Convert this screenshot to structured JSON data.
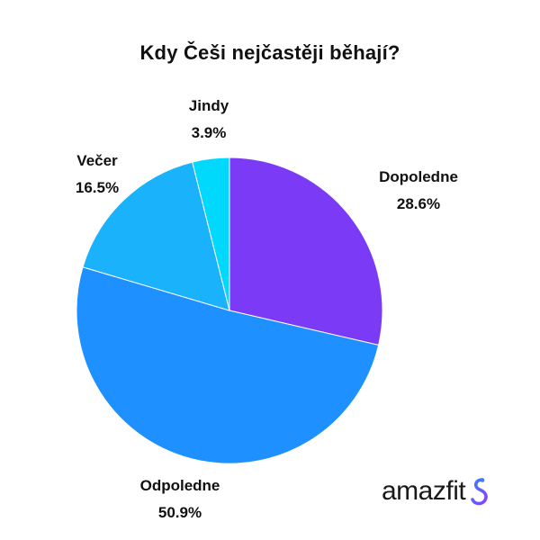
{
  "chart_data": {
    "type": "pie",
    "title": "Kdy Češi nejčastěji běhají?",
    "slices": [
      {
        "label": "Dopoledne",
        "value": 28.6,
        "value_label": "28.6%",
        "color": "#7B3AF5"
      },
      {
        "label": "Odpoledne",
        "value": 50.9,
        "value_label": "50.9%",
        "color": "#1E90FF"
      },
      {
        "label": "Večer",
        "value": 16.5,
        "value_label": "16.5%",
        "color": "#1AB2FA"
      },
      {
        "label": "Jindy",
        "value": 3.9,
        "value_label": "3.9%",
        "color": "#00D9FB"
      }
    ],
    "start_direction": "12 o'clock",
    "direction": "clockwise"
  },
  "brand": {
    "name": "amazfit",
    "icon": "amazfit-logo-icon",
    "accent_colors": [
      "#3D7BFF",
      "#8A3FFC"
    ]
  }
}
